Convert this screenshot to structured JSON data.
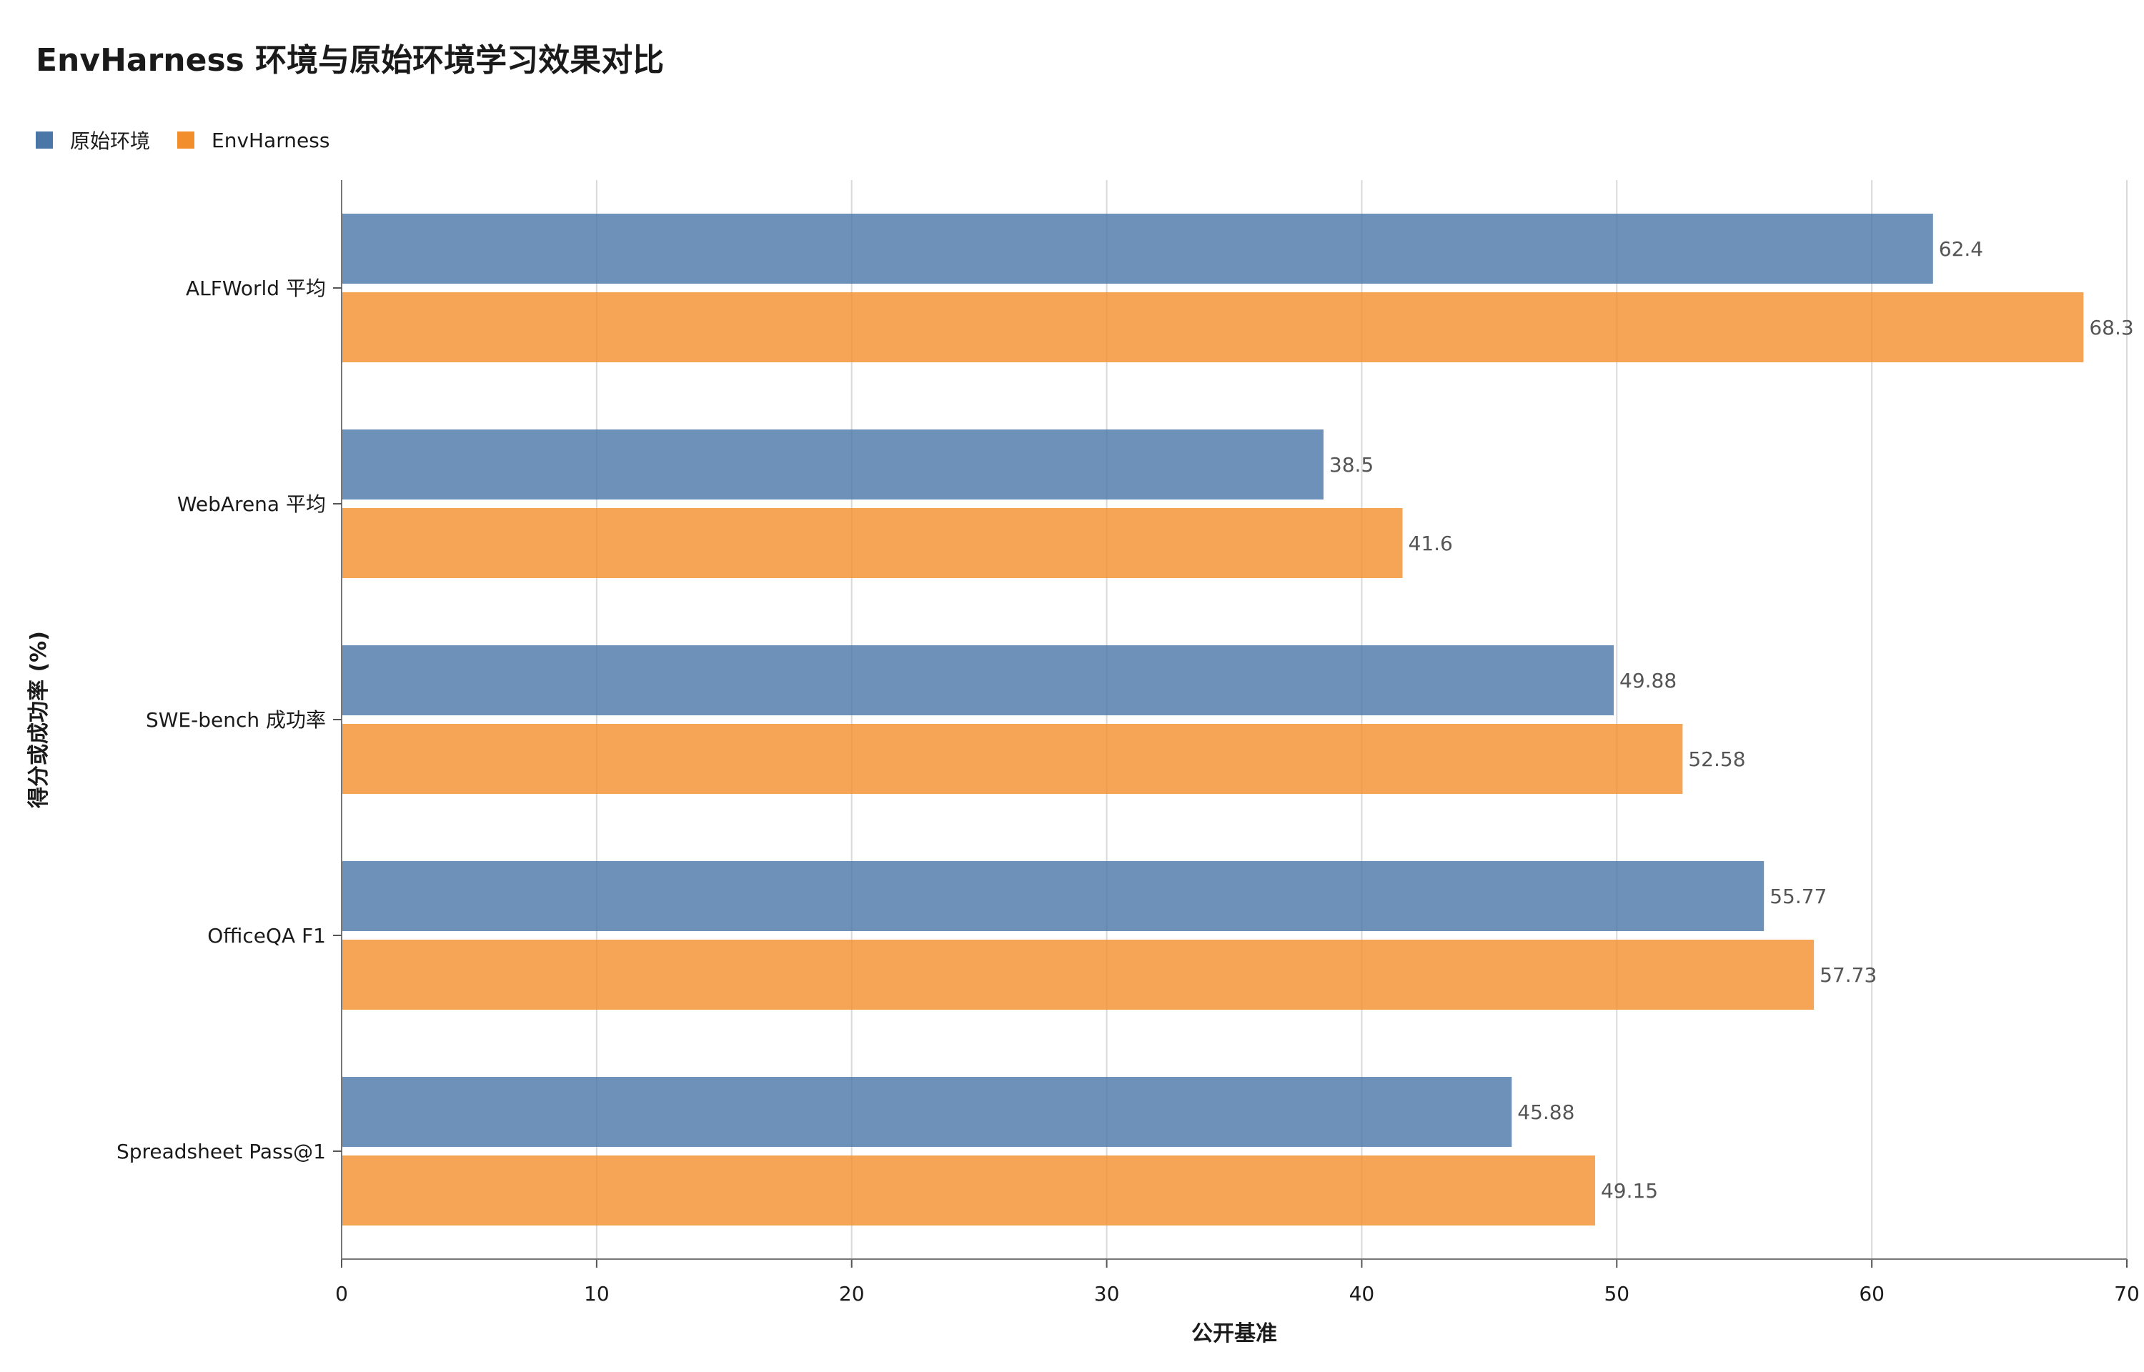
{
  "chart_data": {
    "type": "bar",
    "orientation": "horizontal",
    "title": "EnvHarness 环境与原始环境学习效果对比",
    "xlabel": "公开基准",
    "ylabel": "得分或成功率 (%)",
    "categories": [
      "ALFWorld 平均",
      "WebArena 平均",
      "SWE-bench 成功率",
      "OfficeQA F1",
      "Spreadsheet Pass@1"
    ],
    "series": [
      {
        "name": "原始环境",
        "color": "#4a76a8",
        "values": [
          62.4,
          38.5,
          49.88,
          55.77,
          45.88
        ],
        "labels": [
          "62.4",
          "38.5",
          "49.88",
          "55.77",
          "45.88"
        ]
      },
      {
        "name": "EnvHarness",
        "color": "#f28e2b",
        "values": [
          68.3,
          41.6,
          52.58,
          57.73,
          49.15
        ],
        "labels": [
          "68.3",
          "41.6",
          "52.58",
          "57.73",
          "49.15"
        ]
      }
    ],
    "xlim": [
      0,
      70
    ],
    "xticks": [
      "0",
      "10",
      "20",
      "30",
      "40",
      "50",
      "60",
      "70"
    ],
    "grid": true,
    "legend_position": "top-left"
  }
}
